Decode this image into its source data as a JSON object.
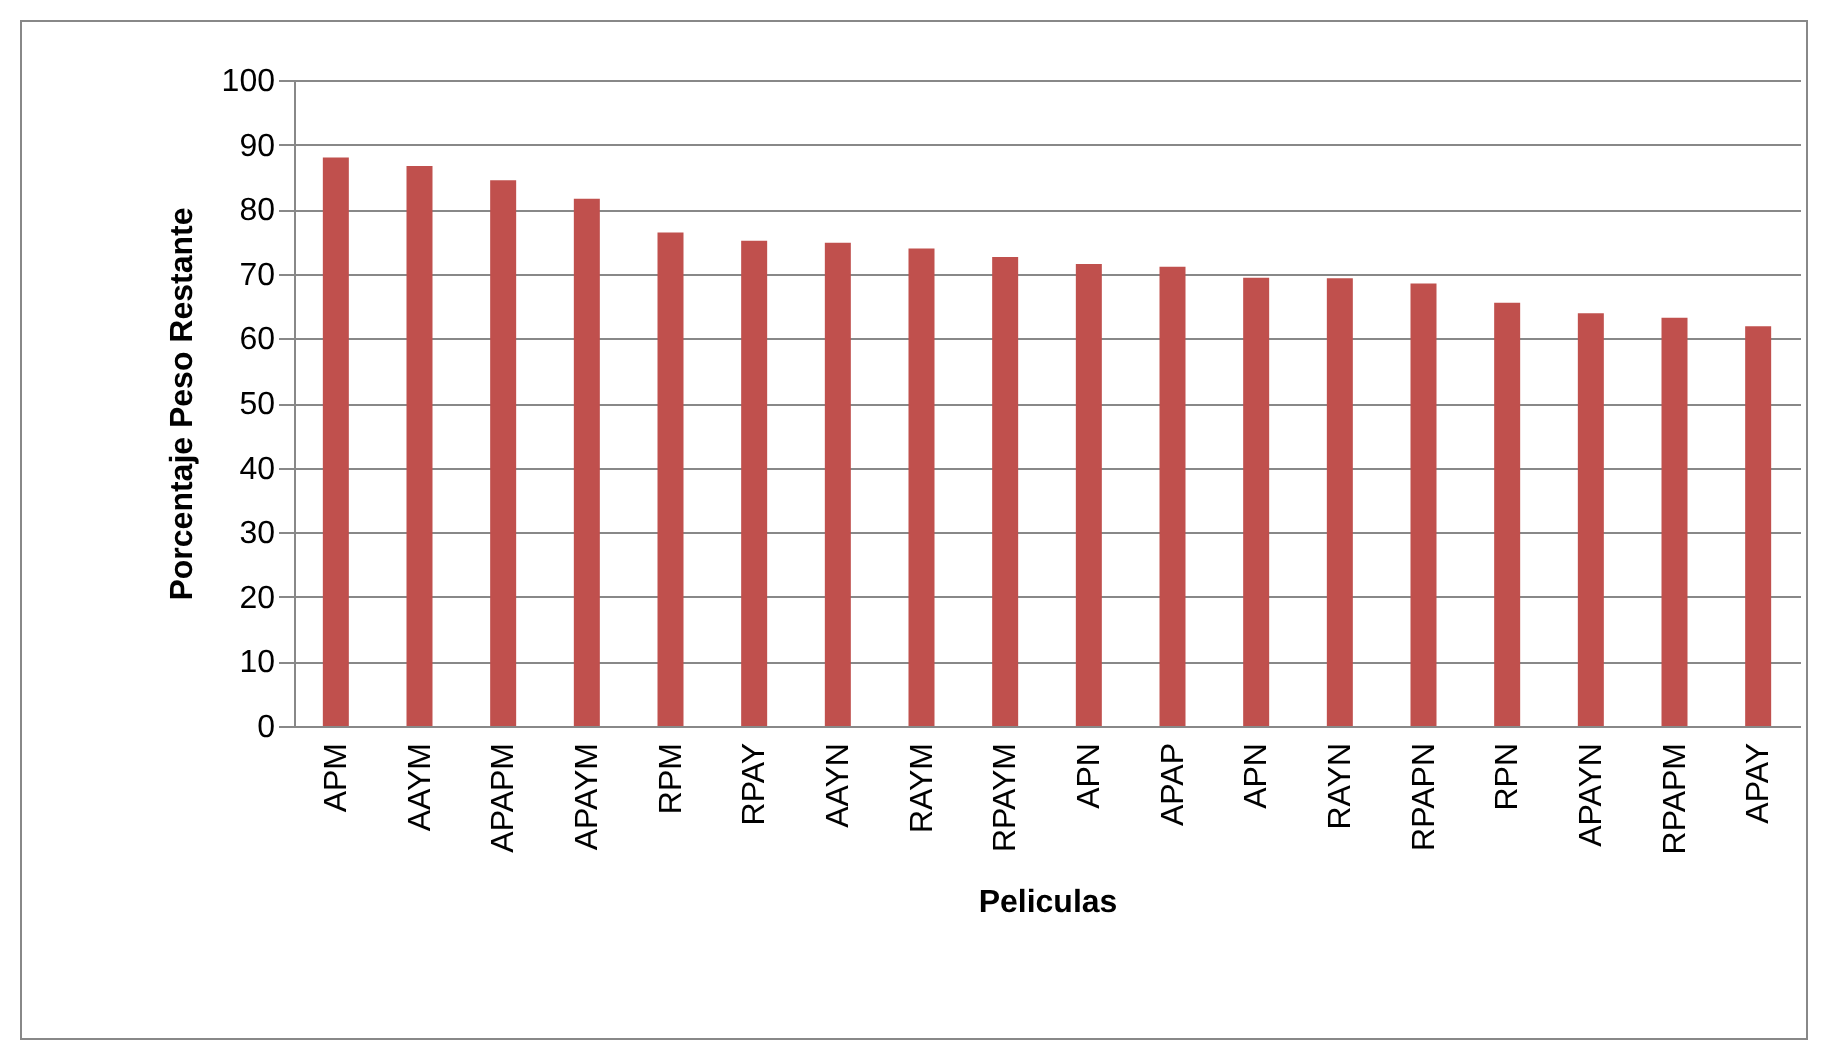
{
  "chart_data": {
    "type": "bar",
    "xlabel": "Peliculas",
    "ylabel": "Porcentaje Peso Restante",
    "categories": [
      "APM",
      "AAYM",
      "APAPM",
      "APAYM",
      "RPM",
      "RPAY",
      "AAYN",
      "RAYM",
      "RPAYM",
      "APN",
      "APAP",
      "APN",
      "RAYN",
      "RPAPN",
      "RPN",
      "APAYN",
      "RPAPM",
      "APAY"
    ],
    "values": [
      88,
      86.7,
      84.5,
      81.6,
      76.4,
      75.1,
      74.8,
      73.9,
      72.6,
      71.5,
      71.1,
      69.4,
      69.3,
      68.5,
      65.5,
      63.9,
      63.2,
      61.9
    ],
    "color": "#c0504d",
    "ylim": [
      0,
      100
    ],
    "yticks": [
      0,
      10,
      20,
      30,
      40,
      50,
      60,
      70,
      80,
      90,
      100
    ],
    "grid": "y"
  }
}
